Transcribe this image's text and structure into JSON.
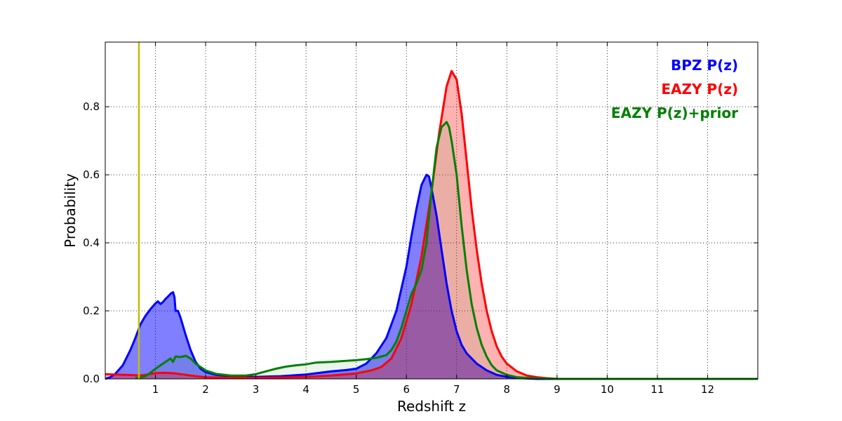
{
  "chart_data": {
    "type": "area",
    "title": "",
    "xlabel": "Redshift z",
    "ylabel": "Probability",
    "xlim": [
      0,
      13
    ],
    "ylim": [
      0,
      0.99
    ],
    "grid": true,
    "legend_position": "top-right",
    "x_ticks": [
      1,
      2,
      3,
      4,
      5,
      6,
      7,
      8,
      9,
      10,
      11,
      12
    ],
    "y_ticks": [
      0.0,
      0.2,
      0.4,
      0.6,
      0.8
    ],
    "y_tick_labels": [
      "0.0",
      "0.2",
      "0.4",
      "0.6",
      "0.8"
    ],
    "reference_line": {
      "x": 0.67,
      "color": "#bfbf00"
    },
    "series": [
      {
        "name": "BPZ P(z)",
        "color": "#0000ff",
        "fill": "#0000ff",
        "fill_opacity": 0.5,
        "points": [
          [
            0,
            0
          ],
          [
            0.1,
            0.005
          ],
          [
            0.2,
            0.015
          ],
          [
            0.35,
            0.04
          ],
          [
            0.5,
            0.085
          ],
          [
            0.6,
            0.12
          ],
          [
            0.7,
            0.16
          ],
          [
            0.8,
            0.185
          ],
          [
            0.9,
            0.205
          ],
          [
            1.0,
            0.222
          ],
          [
            1.05,
            0.228
          ],
          [
            1.1,
            0.22
          ],
          [
            1.15,
            0.226
          ],
          [
            1.2,
            0.235
          ],
          [
            1.25,
            0.242
          ],
          [
            1.3,
            0.25
          ],
          [
            1.35,
            0.255
          ],
          [
            1.38,
            0.24
          ],
          [
            1.4,
            0.2
          ],
          [
            1.45,
            0.2
          ],
          [
            1.5,
            0.18
          ],
          [
            1.6,
            0.13
          ],
          [
            1.7,
            0.085
          ],
          [
            1.8,
            0.05
          ],
          [
            1.9,
            0.03
          ],
          [
            2.0,
            0.02
          ],
          [
            2.2,
            0.012
          ],
          [
            2.5,
            0.008
          ],
          [
            3.0,
            0.006
          ],
          [
            3.5,
            0.008
          ],
          [
            4.0,
            0.013
          ],
          [
            4.5,
            0.022
          ],
          [
            4.8,
            0.026
          ],
          [
            5.0,
            0.03
          ],
          [
            5.2,
            0.045
          ],
          [
            5.4,
            0.075
          ],
          [
            5.6,
            0.12
          ],
          [
            5.8,
            0.2
          ],
          [
            6.0,
            0.33
          ],
          [
            6.1,
            0.42
          ],
          [
            6.2,
            0.5
          ],
          [
            6.3,
            0.57
          ],
          [
            6.4,
            0.6
          ],
          [
            6.45,
            0.595
          ],
          [
            6.5,
            0.56
          ],
          [
            6.6,
            0.48
          ],
          [
            6.7,
            0.38
          ],
          [
            6.8,
            0.28
          ],
          [
            6.9,
            0.2
          ],
          [
            7.0,
            0.14
          ],
          [
            7.1,
            0.1
          ],
          [
            7.2,
            0.075
          ],
          [
            7.4,
            0.045
          ],
          [
            7.6,
            0.025
          ],
          [
            7.8,
            0.012
          ],
          [
            8.0,
            0.006
          ],
          [
            8.3,
            0.002
          ],
          [
            8.6,
            0.0
          ],
          [
            13.0,
            0.0
          ]
        ]
      },
      {
        "name": "EAZY P(z)",
        "color": "#ff0000",
        "fill": "#ff0000",
        "fill_opacity": 0.3,
        "points": [
          [
            0,
            0.014
          ],
          [
            0.2,
            0.013
          ],
          [
            0.4,
            0.012
          ],
          [
            0.6,
            0.011
          ],
          [
            0.7,
            0.01
          ],
          [
            0.8,
            0.012
          ],
          [
            1.0,
            0.017
          ],
          [
            1.2,
            0.018
          ],
          [
            1.4,
            0.016
          ],
          [
            1.6,
            0.012
          ],
          [
            1.8,
            0.008
          ],
          [
            2.0,
            0.005
          ],
          [
            2.5,
            0.003
          ],
          [
            3.0,
            0.003
          ],
          [
            3.5,
            0.004
          ],
          [
            4.0,
            0.006
          ],
          [
            4.5,
            0.01
          ],
          [
            5.0,
            0.016
          ],
          [
            5.3,
            0.025
          ],
          [
            5.5,
            0.035
          ],
          [
            5.7,
            0.06
          ],
          [
            5.9,
            0.12
          ],
          [
            6.1,
            0.22
          ],
          [
            6.3,
            0.36
          ],
          [
            6.5,
            0.55
          ],
          [
            6.65,
            0.72
          ],
          [
            6.8,
            0.86
          ],
          [
            6.9,
            0.905
          ],
          [
            7.0,
            0.88
          ],
          [
            7.1,
            0.78
          ],
          [
            7.2,
            0.64
          ],
          [
            7.3,
            0.5
          ],
          [
            7.4,
            0.38
          ],
          [
            7.5,
            0.28
          ],
          [
            7.6,
            0.2
          ],
          [
            7.7,
            0.14
          ],
          [
            7.8,
            0.095
          ],
          [
            7.9,
            0.065
          ],
          [
            8.0,
            0.045
          ],
          [
            8.2,
            0.022
          ],
          [
            8.4,
            0.01
          ],
          [
            8.6,
            0.005
          ],
          [
            8.8,
            0.002
          ],
          [
            9.0,
            0.0
          ],
          [
            13.0,
            0.0
          ]
        ]
      },
      {
        "name": "EAZY P(z)+prior",
        "color": "#008000",
        "fill": "#008000",
        "fill_opacity": 0.08,
        "points": [
          [
            0.6,
            0.003
          ],
          [
            0.7,
            0.004
          ],
          [
            0.8,
            0.008
          ],
          [
            0.9,
            0.018
          ],
          [
            1.0,
            0.03
          ],
          [
            1.1,
            0.04
          ],
          [
            1.2,
            0.05
          ],
          [
            1.3,
            0.06
          ],
          [
            1.35,
            0.05
          ],
          [
            1.4,
            0.066
          ],
          [
            1.5,
            0.064
          ],
          [
            1.6,
            0.068
          ],
          [
            1.7,
            0.06
          ],
          [
            1.8,
            0.045
          ],
          [
            1.9,
            0.035
          ],
          [
            2.0,
            0.025
          ],
          [
            2.2,
            0.015
          ],
          [
            2.5,
            0.01
          ],
          [
            2.8,
            0.01
          ],
          [
            3.0,
            0.014
          ],
          [
            3.2,
            0.022
          ],
          [
            3.4,
            0.03
          ],
          [
            3.6,
            0.036
          ],
          [
            3.8,
            0.04
          ],
          [
            4.0,
            0.043
          ],
          [
            4.2,
            0.048
          ],
          [
            4.5,
            0.05
          ],
          [
            4.8,
            0.053
          ],
          [
            5.0,
            0.055
          ],
          [
            5.2,
            0.058
          ],
          [
            5.4,
            0.062
          ],
          [
            5.6,
            0.07
          ],
          [
            5.7,
            0.085
          ],
          [
            5.8,
            0.11
          ],
          [
            5.9,
            0.15
          ],
          [
            6.0,
            0.2
          ],
          [
            6.1,
            0.25
          ],
          [
            6.2,
            0.28
          ],
          [
            6.3,
            0.32
          ],
          [
            6.4,
            0.4
          ],
          [
            6.5,
            0.55
          ],
          [
            6.6,
            0.68
          ],
          [
            6.7,
            0.74
          ],
          [
            6.8,
            0.755
          ],
          [
            6.85,
            0.74
          ],
          [
            6.9,
            0.7
          ],
          [
            7.0,
            0.6
          ],
          [
            7.1,
            0.45
          ],
          [
            7.2,
            0.32
          ],
          [
            7.3,
            0.22
          ],
          [
            7.4,
            0.15
          ],
          [
            7.5,
            0.1
          ],
          [
            7.6,
            0.065
          ],
          [
            7.7,
            0.04
          ],
          [
            7.8,
            0.025
          ],
          [
            8.0,
            0.012
          ],
          [
            8.2,
            0.005
          ],
          [
            8.5,
            0.002
          ],
          [
            9.0,
            0.0
          ],
          [
            13.0,
            0.0
          ]
        ]
      }
    ]
  }
}
